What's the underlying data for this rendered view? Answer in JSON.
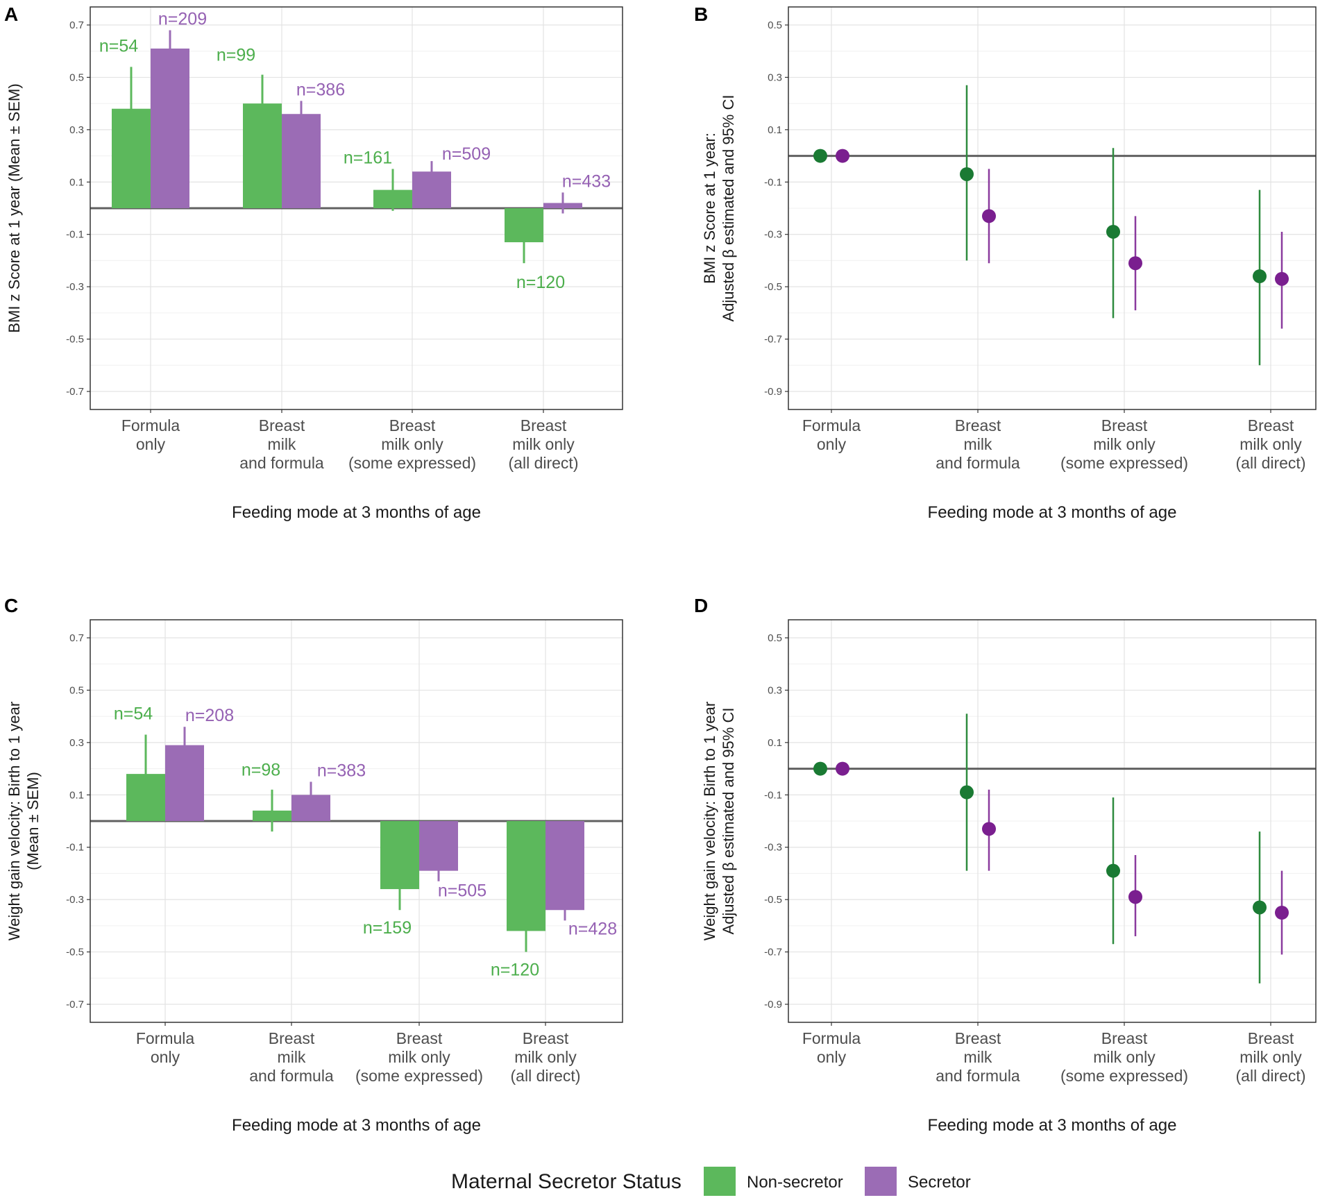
{
  "colors": {
    "nonsec_bar": "#5cb85c",
    "sec_bar": "#9b6cb5",
    "nonsec_point": "#1a7a33",
    "sec_point": "#7a1f8f",
    "nonsec_label": "#4cae4c",
    "sec_label": "#9561b3"
  },
  "legend": {
    "title": "Maternal Secretor Status",
    "items": [
      "Non-secretor",
      "Secretor"
    ]
  },
  "chart_data": [
    {
      "panel": "A",
      "type": "bar",
      "ylabel": [
        "BMI z Score at 1 year (Mean ± SEM)"
      ],
      "xlabel": "Feeding mode at 3 months of age",
      "ylim": [
        -0.8,
        0.75
      ],
      "yticks": [
        "0.7",
        "0.5",
        "0.3",
        "0.1",
        "-0.1",
        "-0.3",
        "-0.5",
        "-0.7"
      ],
      "categories": [
        [
          "Formula",
          "only"
        ],
        [
          "Breast",
          "milk",
          "and formula"
        ],
        [
          "Breast",
          "milk only",
          "(some expressed)"
        ],
        [
          "Breast",
          "milk only",
          "(all direct)"
        ]
      ],
      "series": [
        {
          "name": "Non-secretor",
          "values": [
            0.38,
            0.4,
            0.07,
            -0.13
          ],
          "errors": [
            0.16,
            0.11,
            0.08,
            0.08
          ],
          "n": [
            "n=54",
            "n=99",
            "n=161",
            "n=120"
          ]
        },
        {
          "name": "Secretor",
          "values": [
            0.61,
            0.36,
            0.14,
            0.02
          ],
          "errors": [
            0.07,
            0.05,
            0.04,
            0.04
          ],
          "n": [
            "n=209",
            "n=386",
            "n=509",
            "n=433"
          ]
        }
      ]
    },
    {
      "panel": "B",
      "type": "scatter",
      "ylabel": [
        "BMI z Score at 1 year:",
        "Adjusted β estimated and 95% CI"
      ],
      "xlabel": "Feeding mode at 3 months of age",
      "ylim": [
        -0.98,
        0.58
      ],
      "yticks": [
        "0.5",
        "0.3",
        "0.1",
        "-0.1",
        "-0.3",
        "-0.5",
        "-0.7",
        "-0.9"
      ],
      "categories": [
        [
          "Formula",
          "only"
        ],
        [
          "Breast",
          "milk",
          "and formula"
        ],
        [
          "Breast",
          "milk only",
          "(some expressed)"
        ],
        [
          "Breast",
          "milk only",
          "(all direct)"
        ]
      ],
      "series": [
        {
          "name": "Non-secretor",
          "values": [
            0.0,
            -0.07,
            -0.29,
            -0.46
          ],
          "lower": [
            0.0,
            -0.4,
            -0.62,
            -0.8
          ],
          "upper": [
            0.0,
            0.27,
            0.03,
            -0.13
          ]
        },
        {
          "name": "Secretor",
          "values": [
            0.0,
            -0.23,
            -0.41,
            -0.47
          ],
          "lower": [
            0.0,
            -0.41,
            -0.59,
            -0.66
          ],
          "upper": [
            0.0,
            -0.05,
            -0.23,
            -0.29
          ]
        }
      ]
    },
    {
      "panel": "C",
      "type": "bar",
      "ylabel": [
        "Weight gain velocity: Birth to 1 year",
        "(Mean ± SEM)"
      ],
      "xlabel": "Feeding mode at 3 months of age",
      "ylim": [
        -0.77,
        0.75
      ],
      "yticks": [
        "0.7",
        "0.5",
        "0.3",
        "0.1",
        "-0.1",
        "-0.3",
        "-0.5",
        "-0.7"
      ],
      "categories": [
        [
          "Formula",
          "only"
        ],
        [
          "Breast",
          "milk",
          "and formula"
        ],
        [
          "Breast",
          "milk only",
          "(some expressed)"
        ],
        [
          "Breast",
          "milk only",
          "(all direct)"
        ]
      ],
      "series": [
        {
          "name": "Non-secretor",
          "values": [
            0.18,
            0.04,
            -0.26,
            -0.42
          ],
          "errors": [
            0.15,
            0.08,
            0.08,
            0.08
          ],
          "n": [
            "n=54",
            "n=98",
            "n=159",
            "n=120"
          ]
        },
        {
          "name": "Secretor",
          "values": [
            0.29,
            0.1,
            -0.19,
            -0.34
          ],
          "errors": [
            0.07,
            0.05,
            0.04,
            0.04
          ],
          "n": [
            "n=208",
            "n=383",
            "n=505",
            "n=428"
          ]
        }
      ]
    },
    {
      "panel": "D",
      "type": "scatter",
      "ylabel": [
        "Weight gain velocity: Birth to 1 year",
        "Adjusted β estimated and 95% CI"
      ],
      "xlabel": "Feeding mode at 3 months of age",
      "ylim": [
        -0.98,
        0.58
      ],
      "yticks": [
        "0.5",
        "0.3",
        "0.1",
        "-0.1",
        "-0.3",
        "-0.5",
        "-0.7",
        "-0.9"
      ],
      "categories": [
        [
          "Formula",
          "only"
        ],
        [
          "Breast",
          "milk",
          "and formula"
        ],
        [
          "Breast",
          "milk only",
          "(some expressed)"
        ],
        [
          "Breast",
          "milk only",
          "(all direct)"
        ]
      ],
      "series": [
        {
          "name": "Non-secretor",
          "values": [
            0.0,
            -0.09,
            -0.39,
            -0.53
          ],
          "lower": [
            0.0,
            -0.39,
            -0.67,
            -0.82
          ],
          "upper": [
            0.0,
            0.21,
            -0.11,
            -0.24
          ]
        },
        {
          "name": "Secretor",
          "values": [
            0.0,
            -0.23,
            -0.49,
            -0.55
          ],
          "lower": [
            0.0,
            -0.39,
            -0.64,
            -0.71
          ],
          "upper": [
            0.0,
            -0.08,
            -0.33,
            -0.39
          ]
        }
      ]
    }
  ]
}
